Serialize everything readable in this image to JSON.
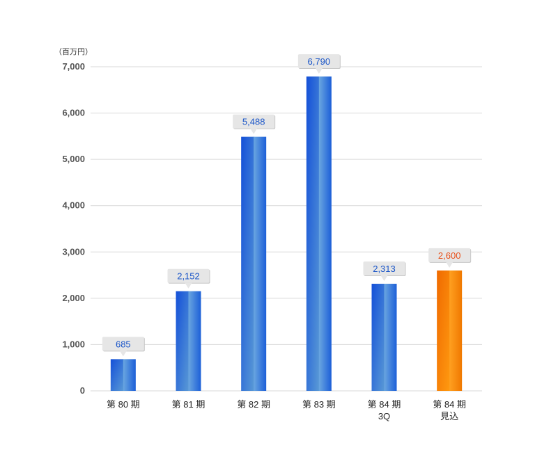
{
  "chart_data": {
    "type": "bar",
    "unit_label": "（百万円）",
    "categories": [
      [
        "第 80 期"
      ],
      [
        "第 81 期"
      ],
      [
        "第 82 期"
      ],
      [
        "第 83 期"
      ],
      [
        "第 84 期",
        "3Q"
      ],
      [
        "第 84 期",
        "見込"
      ]
    ],
    "values": [
      685,
      2152,
      5488,
      6790,
      2313,
      2600
    ],
    "value_labels": [
      "685",
      "2,152",
      "5,488",
      "6,790",
      "2,313",
      "2,600"
    ],
    "highlighted": [
      false,
      false,
      false,
      false,
      false,
      true
    ],
    "ylim": [
      0,
      7000
    ],
    "yticks": [
      0,
      1000,
      2000,
      3000,
      4000,
      5000,
      6000,
      7000
    ],
    "ytick_labels": [
      "0",
      "1,000",
      "2,000",
      "3,000",
      "4,000",
      "5,000",
      "6,000",
      "7,000"
    ],
    "grid": true,
    "colors": {
      "bar_dark": "#1555d6",
      "bar_light": "#5b9ad8",
      "bar_orange": "#ff8c00",
      "bar_orange_dark": "#f06a00",
      "label_blue": "#1a55c8",
      "label_orange": "#e8501a",
      "callout_bg": "#e6e6e6",
      "grid": "#d9d9d9"
    }
  }
}
